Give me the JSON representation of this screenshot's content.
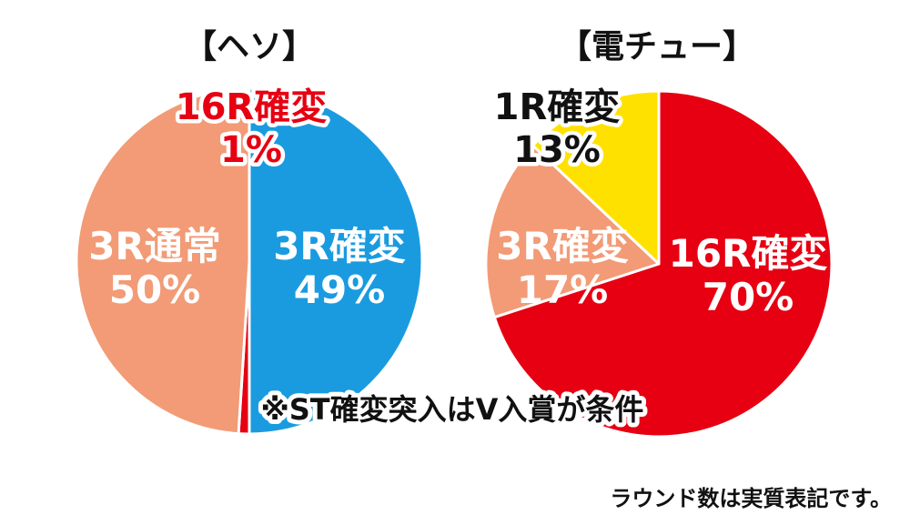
{
  "chart_data": [
    {
      "type": "pie",
      "title": "【ヘソ】",
      "slices": [
        {
          "label": "3R通常",
          "value": 50,
          "value_label": "50%",
          "color": "#1a9be0"
        },
        {
          "label": "16R確変",
          "value": 1,
          "value_label": "1%",
          "color": "#e60012"
        },
        {
          "label": "3R確変",
          "value": 49,
          "value_label": "49%",
          "color": "#f29b76"
        }
      ]
    },
    {
      "type": "pie",
      "title": "【電チュー】",
      "slices": [
        {
          "label": "16R確変",
          "value": 70,
          "value_label": "70%",
          "color": "#e60012"
        },
        {
          "label": "3R確変",
          "value": 17,
          "value_label": "17%",
          "color": "#f29b76"
        },
        {
          "label": "1R確変",
          "value": 13,
          "value_label": "13%",
          "color": "#ffe100"
        }
      ]
    }
  ],
  "annotations": {
    "note_center": "※ST確変突入はV入賞が条件",
    "note_bottom": "ラウンド数は実質表記です。"
  }
}
